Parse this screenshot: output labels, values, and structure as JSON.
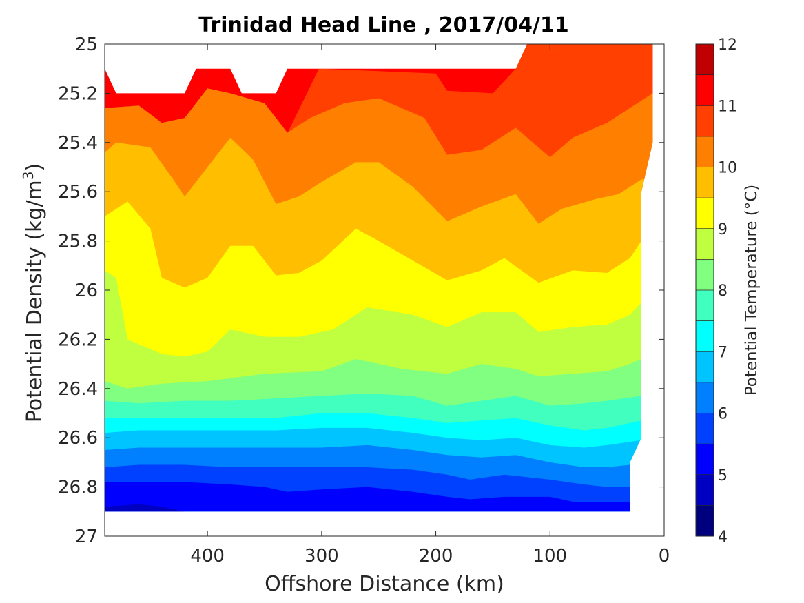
{
  "chart_data": {
    "type": "heatmap",
    "subtype": "filled-contour",
    "title": "Trinidad Head Line , 2017/04/11",
    "xlabel": "Offshore Distance (km)",
    "ylabel": "Potential Density (kg/m",
    "ylabel_sup": "3",
    "ylabel_end": ")",
    "xlim": [
      490,
      0
    ],
    "x_reversed": true,
    "ylim": [
      25,
      27
    ],
    "y_reversed": true,
    "x_ticks": [
      400,
      300,
      200,
      100,
      0
    ],
    "y_ticks": [
      25,
      25.2,
      25.4,
      25.6,
      25.8,
      26,
      26.2,
      26.4,
      26.6,
      26.8,
      27
    ],
    "grid": false,
    "colormap": "jet",
    "colorbar": {
      "label": "Potential Temperature (°C)",
      "min": 4,
      "max": 12,
      "step": 0.5,
      "ticks": [
        4,
        5,
        6,
        7,
        8,
        9,
        10,
        11,
        12
      ],
      "colors": [
        "#00007f",
        "#0000c3",
        "#0000ff",
        "#0040ff",
        "#0080ff",
        "#00c4ff",
        "#00ffff",
        "#40ffbf",
        "#80ff80",
        "#bfff40",
        "#ffff00",
        "#ffbf00",
        "#ff7f00",
        "#ff4000",
        "#ff0000",
        "#c00000"
      ]
    },
    "data_top_edge": [
      [
        490,
        25.1
      ],
      [
        480,
        25.2
      ],
      [
        420,
        25.2
      ],
      [
        410,
        25.1
      ],
      [
        380,
        25.1
      ],
      [
        370,
        25.2
      ],
      [
        340,
        25.2
      ],
      [
        330,
        25.1
      ],
      [
        130,
        25.1
      ],
      [
        120,
        25.0
      ],
      [
        10,
        25.0
      ]
    ],
    "data_right_edge": [
      [
        10,
        25.0
      ],
      [
        10,
        25.4
      ],
      [
        20,
        25.6
      ],
      [
        20,
        26.6
      ],
      [
        30,
        26.7
      ],
      [
        30,
        26.9
      ]
    ],
    "data_bottom": 26.9,
    "contours": [
      {
        "level": 11.0,
        "points": [
          [
            300,
            25.1
          ],
          [
            200,
            25.12
          ],
          [
            190,
            25.19
          ],
          [
            150,
            25.2
          ],
          [
            130,
            25.1
          ],
          [
            120,
            25.0
          ]
        ]
      },
      {
        "level": 10.5,
        "points": [
          [
            490,
            25.26
          ],
          [
            460,
            25.25
          ],
          [
            440,
            25.32
          ],
          [
            420,
            25.3
          ],
          [
            400,
            25.18
          ],
          [
            380,
            25.2
          ],
          [
            350,
            25.24
          ],
          [
            330,
            25.36
          ],
          [
            310,
            25.3
          ],
          [
            280,
            25.24
          ],
          [
            250,
            25.22
          ],
          [
            210,
            25.3
          ],
          [
            190,
            25.45
          ],
          [
            160,
            25.43
          ],
          [
            130,
            25.34
          ],
          [
            100,
            25.46
          ],
          [
            80,
            25.38
          ],
          [
            50,
            25.32
          ],
          [
            30,
            25.26
          ],
          [
            10,
            25.2
          ]
        ]
      },
      {
        "level": 10.0,
        "points": [
          [
            490,
            25.44
          ],
          [
            480,
            25.4
          ],
          [
            450,
            25.42
          ],
          [
            430,
            25.55
          ],
          [
            420,
            25.62
          ],
          [
            400,
            25.5
          ],
          [
            380,
            25.38
          ],
          [
            360,
            25.47
          ],
          [
            340,
            25.65
          ],
          [
            320,
            25.62
          ],
          [
            300,
            25.56
          ],
          [
            270,
            25.48
          ],
          [
            250,
            25.48
          ],
          [
            220,
            25.58
          ],
          [
            190,
            25.72
          ],
          [
            160,
            25.66
          ],
          [
            130,
            25.61
          ],
          [
            110,
            25.73
          ],
          [
            90,
            25.67
          ],
          [
            60,
            25.63
          ],
          [
            40,
            25.61
          ],
          [
            20,
            25.55
          ]
        ]
      },
      {
        "level": 9.5,
        "points": [
          [
            490,
            25.7
          ],
          [
            470,
            25.64
          ],
          [
            450,
            25.75
          ],
          [
            440,
            25.95
          ],
          [
            420,
            25.99
          ],
          [
            400,
            25.95
          ],
          [
            380,
            25.82
          ],
          [
            360,
            25.82
          ],
          [
            340,
            25.94
          ],
          [
            320,
            25.93
          ],
          [
            300,
            25.88
          ],
          [
            270,
            25.75
          ],
          [
            250,
            25.8
          ],
          [
            220,
            25.88
          ],
          [
            190,
            25.96
          ],
          [
            160,
            25.92
          ],
          [
            140,
            25.87
          ],
          [
            110,
            25.97
          ],
          [
            80,
            25.92
          ],
          [
            50,
            25.93
          ],
          [
            30,
            25.87
          ],
          [
            20,
            25.8
          ]
        ]
      },
      {
        "level": 9.0,
        "points": [
          [
            490,
            25.92
          ],
          [
            480,
            25.95
          ],
          [
            470,
            26.2
          ],
          [
            440,
            26.26
          ],
          [
            420,
            26.27
          ],
          [
            400,
            26.25
          ],
          [
            380,
            26.16
          ],
          [
            350,
            26.19
          ],
          [
            320,
            26.19
          ],
          [
            290,
            26.16
          ],
          [
            260,
            26.07
          ],
          [
            220,
            26.1
          ],
          [
            190,
            26.15
          ],
          [
            160,
            26.09
          ],
          [
            130,
            26.09
          ],
          [
            110,
            26.17
          ],
          [
            80,
            26.15
          ],
          [
            50,
            26.14
          ],
          [
            30,
            26.1
          ],
          [
            20,
            26.05
          ]
        ]
      },
      {
        "level": 8.5,
        "points": [
          [
            490,
            26.37
          ],
          [
            470,
            26.4
          ],
          [
            440,
            26.38
          ],
          [
            400,
            26.37
          ],
          [
            350,
            26.34
          ],
          [
            300,
            26.33
          ],
          [
            270,
            26.28
          ],
          [
            230,
            26.32
          ],
          [
            190,
            26.34
          ],
          [
            160,
            26.3
          ],
          [
            130,
            26.32
          ],
          [
            110,
            26.35
          ],
          [
            80,
            26.34
          ],
          [
            50,
            26.33
          ],
          [
            30,
            26.3
          ],
          [
            20,
            26.28
          ]
        ]
      },
      {
        "level": 8.0,
        "points": [
          [
            490,
            26.45
          ],
          [
            460,
            26.46
          ],
          [
            420,
            26.45
          ],
          [
            380,
            26.45
          ],
          [
            340,
            26.44
          ],
          [
            300,
            26.43
          ],
          [
            260,
            26.42
          ],
          [
            220,
            26.43
          ],
          [
            190,
            26.47
          ],
          [
            160,
            26.45
          ],
          [
            130,
            26.43
          ],
          [
            100,
            26.47
          ],
          [
            70,
            26.46
          ],
          [
            50,
            26.45
          ],
          [
            20,
            26.43
          ]
        ]
      },
      {
        "level": 7.5,
        "points": [
          [
            490,
            26.52
          ],
          [
            460,
            26.52
          ],
          [
            420,
            26.52
          ],
          [
            380,
            26.52
          ],
          [
            340,
            26.52
          ],
          [
            300,
            26.5
          ],
          [
            260,
            26.5
          ],
          [
            220,
            26.52
          ],
          [
            190,
            26.54
          ],
          [
            160,
            26.53
          ],
          [
            130,
            26.52
          ],
          [
            100,
            26.55
          ],
          [
            70,
            26.57
          ],
          [
            50,
            26.56
          ],
          [
            20,
            26.53
          ]
        ]
      },
      {
        "level": 7.0,
        "points": [
          [
            490,
            26.58
          ],
          [
            460,
            26.57
          ],
          [
            420,
            26.57
          ],
          [
            380,
            26.57
          ],
          [
            340,
            26.57
          ],
          [
            300,
            26.56
          ],
          [
            260,
            26.56
          ],
          [
            220,
            26.58
          ],
          [
            190,
            26.6
          ],
          [
            160,
            26.61
          ],
          [
            130,
            26.6
          ],
          [
            100,
            26.63
          ],
          [
            70,
            26.64
          ],
          [
            50,
            26.63
          ],
          [
            20,
            26.61
          ]
        ]
      },
      {
        "level": 6.5,
        "points": [
          [
            490,
            26.65
          ],
          [
            460,
            26.64
          ],
          [
            420,
            26.64
          ],
          [
            380,
            26.64
          ],
          [
            340,
            26.64
          ],
          [
            300,
            26.64
          ],
          [
            260,
            26.63
          ],
          [
            220,
            26.65
          ],
          [
            190,
            26.67
          ],
          [
            160,
            26.68
          ],
          [
            130,
            26.67
          ],
          [
            100,
            26.7
          ],
          [
            70,
            26.72
          ],
          [
            50,
            26.72
          ],
          [
            30,
            26.71
          ]
        ]
      },
      {
        "level": 6.0,
        "points": [
          [
            490,
            26.72
          ],
          [
            460,
            26.71
          ],
          [
            420,
            26.71
          ],
          [
            380,
            26.72
          ],
          [
            340,
            26.72
          ],
          [
            300,
            26.72
          ],
          [
            260,
            26.72
          ],
          [
            220,
            26.73
          ],
          [
            190,
            26.75
          ],
          [
            170,
            26.77
          ],
          [
            140,
            26.75
          ],
          [
            100,
            26.77
          ],
          [
            70,
            26.79
          ],
          [
            50,
            26.8
          ],
          [
            30,
            26.8
          ]
        ]
      },
      {
        "level": 5.5,
        "points": [
          [
            490,
            26.78
          ],
          [
            460,
            26.78
          ],
          [
            420,
            26.78
          ],
          [
            380,
            26.79
          ],
          [
            350,
            26.8
          ],
          [
            330,
            26.82
          ],
          [
            300,
            26.81
          ],
          [
            260,
            26.8
          ],
          [
            220,
            26.82
          ],
          [
            190,
            26.84
          ],
          [
            170,
            26.85
          ],
          [
            140,
            26.84
          ],
          [
            100,
            26.84
          ],
          [
            80,
            26.86
          ],
          [
            60,
            26.86
          ],
          [
            30,
            26.86
          ]
        ]
      },
      {
        "level": 5.0,
        "points": [
          [
            490,
            26.88
          ],
          [
            460,
            26.87
          ],
          [
            440,
            26.88
          ],
          [
            420,
            26.9
          ]
        ]
      }
    ]
  }
}
